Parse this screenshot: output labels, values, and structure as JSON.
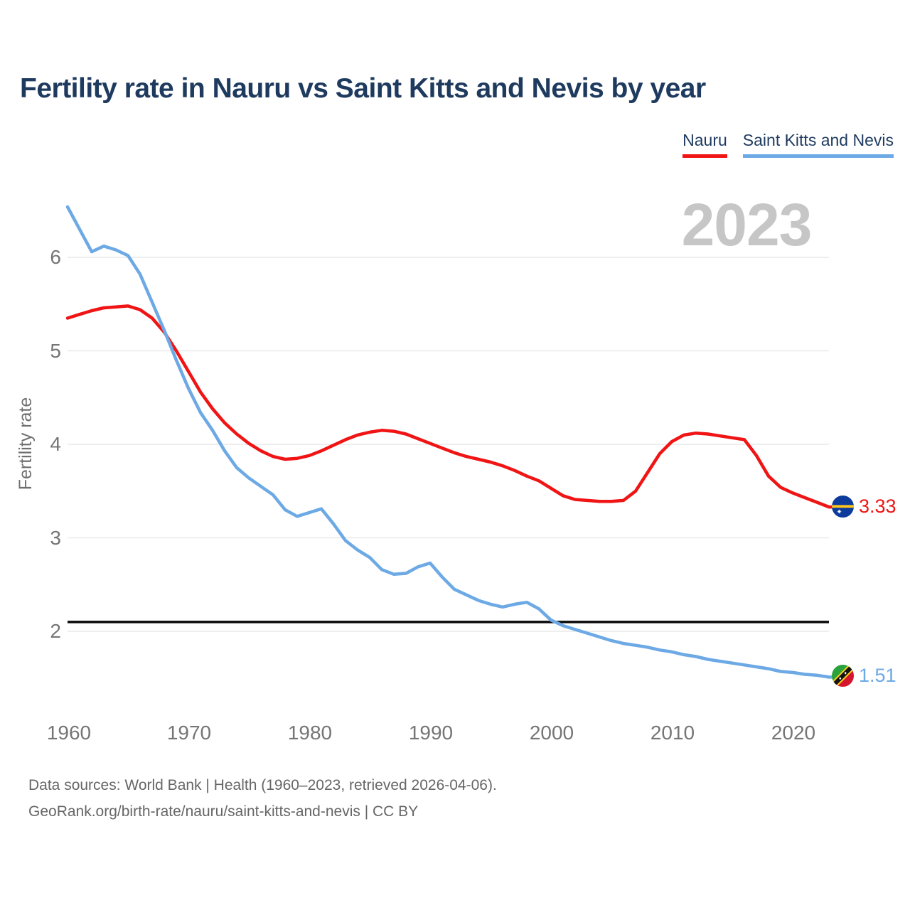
{
  "header": {
    "title": "Fertility rate in Nauru vs Saint Kitts and Nevis by year"
  },
  "legend": {
    "items": [
      {
        "label": "Nauru",
        "color": "#f01414"
      },
      {
        "label": "Saint Kitts and Nevis",
        "color": "#6ca9e5"
      }
    ]
  },
  "watermark": "2023",
  "chart_data": {
    "type": "line",
    "title": "Fertility rate in Nauru vs Saint Kitts and Nevis by year",
    "xlabel": "",
    "ylabel": "Fertility rate",
    "x_start": 1960,
    "x_end": 2023,
    "xlim": [
      1960,
      2023
    ],
    "ylim": [
      1.3,
      6.6
    ],
    "y_ticks": [
      "6",
      "5",
      "4",
      "3",
      "2"
    ],
    "x_ticks": [
      "1960",
      "1970",
      "1980",
      "1990",
      "2000",
      "2010",
      "2020"
    ],
    "grid": "horizontal",
    "legend_position": "top-right",
    "reference_line": {
      "value": 2.1,
      "color": "#0a0a0a"
    },
    "series": [
      {
        "name": "Nauru",
        "color": "#f01414",
        "end_label": "3.33",
        "values": [
          5.35,
          5.39,
          5.43,
          5.46,
          5.47,
          5.48,
          5.44,
          5.35,
          5.2,
          5.0,
          4.78,
          4.56,
          4.38,
          4.23,
          4.11,
          4.01,
          3.93,
          3.87,
          3.84,
          3.85,
          3.88,
          3.93,
          3.99,
          4.05,
          4.1,
          4.13,
          4.15,
          4.14,
          4.11,
          4.06,
          4.01,
          3.96,
          3.91,
          3.87,
          3.84,
          3.81,
          3.77,
          3.72,
          3.66,
          3.61,
          3.53,
          3.45,
          3.41,
          3.4,
          3.39,
          3.39,
          3.4,
          3.5,
          3.7,
          3.9,
          4.03,
          4.1,
          4.12,
          4.11,
          4.09,
          4.07,
          4.05,
          3.88,
          3.66,
          3.54,
          3.48,
          3.43,
          3.38,
          3.33
        ]
      },
      {
        "name": "Saint Kitts and Nevis",
        "color": "#6ca9e5",
        "end_label": "1.51",
        "values": [
          6.54,
          6.3,
          6.06,
          6.12,
          6.08,
          6.02,
          5.82,
          5.52,
          5.22,
          4.9,
          4.6,
          4.34,
          4.15,
          3.93,
          3.75,
          3.64,
          3.55,
          3.46,
          3.3,
          3.23,
          3.27,
          3.31,
          3.15,
          2.97,
          2.87,
          2.79,
          2.66,
          2.61,
          2.62,
          2.69,
          2.73,
          2.58,
          2.45,
          2.39,
          2.33,
          2.29,
          2.26,
          2.29,
          2.31,
          2.24,
          2.12,
          2.06,
          2.02,
          1.98,
          1.94,
          1.9,
          1.87,
          1.85,
          1.83,
          1.8,
          1.78,
          1.75,
          1.73,
          1.7,
          1.68,
          1.66,
          1.64,
          1.62,
          1.6,
          1.57,
          1.56,
          1.54,
          1.53,
          1.51
        ]
      }
    ]
  },
  "footer": {
    "line1": "Data sources: World Bank | Health (1960–2023, retrieved 2026-04-06).",
    "line2": "GeoRank.org/birth-rate/nauru/saint-kitts-and-nevis | CC BY"
  }
}
